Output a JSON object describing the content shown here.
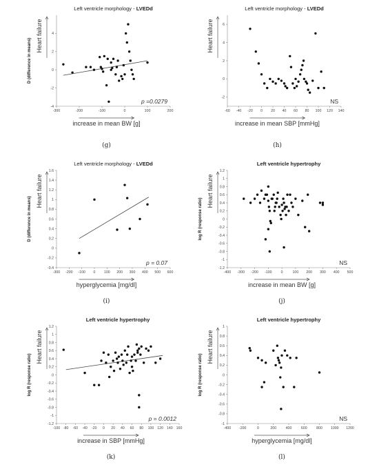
{
  "chart_data": [
    {
      "id": "g",
      "type": "scatter",
      "title_prefix": "Left ventricle morphology - ",
      "title_bold": "LVEDd",
      "ylabel": "D (difference in means)",
      "side_label": "Heart failure",
      "xlabel": "increase in mean BW [g]",
      "caption": "(g)",
      "stat": "p =0.0279",
      "xlim": [
        -300,
        200
      ],
      "ylim": [
        -4,
        6
      ],
      "xticks": [
        -300,
        -200,
        -100,
        0,
        100,
        200
      ],
      "yticks": [
        -4,
        -2,
        0,
        2,
        4
      ],
      "fit": [
        [
          -270,
          -0.6
        ],
        [
          100,
          1.0
        ]
      ],
      "points": [
        [
          -270,
          0.6
        ],
        [
          -230,
          -0.3
        ],
        [
          -170,
          0.3
        ],
        [
          -150,
          0.3
        ],
        [
          -135,
          0.0
        ],
        [
          -110,
          1.4
        ],
        [
          -105,
          0.3
        ],
        [
          -100,
          0.1
        ],
        [
          -95,
          -0.2
        ],
        [
          -90,
          1.5
        ],
        [
          -80,
          -1.7
        ],
        [
          -75,
          1.2
        ],
        [
          -70,
          -3.5
        ],
        [
          -60,
          0.0
        ],
        [
          -55,
          0.2
        ],
        [
          -50,
          1.2
        ],
        [
          -40,
          -0.5
        ],
        [
          -35,
          0.3
        ],
        [
          -30,
          1.0
        ],
        [
          -25,
          -1.2
        ],
        [
          -15,
          -0.7
        ],
        [
          -10,
          -1.0
        ],
        [
          -5,
          0.5
        ],
        [
          0,
          -0.5
        ],
        [
          5,
          4.0
        ],
        [
          10,
          3.0
        ],
        [
          15,
          5.0
        ],
        [
          20,
          2.0
        ],
        [
          25,
          1.0
        ],
        [
          30,
          0.0
        ],
        [
          35,
          -0.5
        ],
        [
          40,
          -1.0
        ],
        [
          -60,
          0.8
        ],
        [
          100,
          0.8
        ]
      ]
    },
    {
      "id": "h",
      "type": "scatter",
      "title_prefix": "Left ventricle morphology - ",
      "title_bold": "LVEDd",
      "ylabel": "",
      "side_label": "Heart failure",
      "xlabel": "increase in mean SBP [mmHg]",
      "caption": "(h)",
      "stat": "NS",
      "xlim": [
        -60,
        140
      ],
      "ylim": [
        -3,
        7
      ],
      "xticks": [
        -60,
        -40,
        -20,
        0,
        20,
        40,
        60,
        80,
        100,
        120,
        140
      ],
      "yticks": [
        -2,
        0,
        2,
        4,
        6
      ],
      "fit": null,
      "points": [
        [
          -20,
          5.5
        ],
        [
          -10,
          3.0
        ],
        [
          -5,
          1.7
        ],
        [
          0,
          0.5
        ],
        [
          5,
          -0.5
        ],
        [
          10,
          -1.0
        ],
        [
          15,
          0.0
        ],
        [
          20,
          -0.3
        ],
        [
          25,
          -0.5
        ],
        [
          30,
          0.0
        ],
        [
          35,
          -0.2
        ],
        [
          40,
          -0.5
        ],
        [
          42,
          -0.8
        ],
        [
          45,
          -1.0
        ],
        [
          50,
          2.5
        ],
        [
          52,
          1.3
        ],
        [
          55,
          -0.5
        ],
        [
          58,
          -1.0
        ],
        [
          60,
          0.0
        ],
        [
          62,
          -0.8
        ],
        [
          65,
          -0.3
        ],
        [
          68,
          0.5
        ],
        [
          70,
          1.0
        ],
        [
          72,
          1.5
        ],
        [
          74,
          2.0
        ],
        [
          75,
          0.0
        ],
        [
          78,
          -0.3
        ],
        [
          80,
          -0.5
        ],
        [
          82,
          -1.2
        ],
        [
          85,
          -1.5
        ],
        [
          90,
          -0.2
        ],
        [
          95,
          5.0
        ],
        [
          100,
          -1.0
        ],
        [
          105,
          0.8
        ],
        [
          110,
          -1.0
        ]
      ]
    },
    {
      "id": "i",
      "type": "scatter",
      "title_prefix": "Left ventricle morphology - ",
      "title_bold": "LVEDd",
      "ylabel": "D (difference in means)",
      "side_label": "Heart failure",
      "xlabel": "hyperglycemia [mg/dl]",
      "caption": "(i)",
      "stat": "p = 0.07",
      "xlim": [
        -300,
        600
      ],
      "ylim": [
        -0.4,
        1.6
      ],
      "xticks": [
        -300,
        -200,
        -100,
        0,
        100,
        200,
        300,
        400,
        500,
        600
      ],
      "yticks": [
        -0.4,
        -0.2,
        0,
        0.2,
        0.4,
        0.6,
        0.8,
        1.0,
        1.2,
        1.4,
        1.6
      ],
      "fit": [
        [
          -120,
          0.2
        ],
        [
          430,
          1.05
        ]
      ],
      "points": [
        [
          -120,
          -0.1
        ],
        [
          0,
          1.0
        ],
        [
          180,
          0.38
        ],
        [
          240,
          1.3
        ],
        [
          260,
          1.03
        ],
        [
          280,
          0.4
        ],
        [
          360,
          0.6
        ],
        [
          420,
          0.9
        ]
      ]
    },
    {
      "id": "j",
      "type": "scatter",
      "title_prefix": "",
      "title_bold": "Left ventricle hypertrophy",
      "ylabel": "log R (response ratio)",
      "side_label": "Heart failure",
      "xlabel": "increase in mean BW [g]",
      "caption": "(j)",
      "stat": "NS",
      "xlim": [
        -400,
        500
      ],
      "ylim": [
        -1.2,
        1.2
      ],
      "xticks": [
        -400,
        -300,
        -200,
        -100,
        0,
        100,
        200,
        300,
        400,
        500
      ],
      "yticks": [
        -1.2,
        -1.0,
        -0.8,
        -0.6,
        -0.4,
        -0.2,
        0,
        0.2,
        0.4,
        0.6,
        0.8,
        1.0,
        1.2
      ],
      "fit": null,
      "points": [
        [
          -280,
          0.5
        ],
        [
          -230,
          0.4
        ],
        [
          -200,
          0.5
        ],
        [
          -180,
          0.6
        ],
        [
          -160,
          0.4
        ],
        [
          -150,
          0.7
        ],
        [
          -130,
          0.5
        ],
        [
          -120,
          0.6
        ],
        [
          -110,
          0.6
        ],
        [
          -100,
          0.8
        ],
        [
          -100,
          0.45
        ],
        [
          -95,
          0.3
        ],
        [
          -90,
          0.2
        ],
        [
          -85,
          -0.05
        ],
        [
          -80,
          -0.1
        ],
        [
          -75,
          0.5
        ],
        [
          -70,
          0.5
        ],
        [
          -60,
          0.6
        ],
        [
          -55,
          0.2
        ],
        [
          -50,
          0.3
        ],
        [
          -45,
          0.4
        ],
        [
          -40,
          0.4
        ],
        [
          -35,
          0.5
        ],
        [
          -30,
          0.65
        ],
        [
          -20,
          0.3
        ],
        [
          -10,
          0.1
        ],
        [
          -5,
          0.0
        ],
        [
          0,
          0.35
        ],
        [
          5,
          0.2
        ],
        [
          10,
          0.5
        ],
        [
          15,
          0.4
        ],
        [
          20,
          0.25
        ],
        [
          25,
          0.3
        ],
        [
          30,
          0.1
        ],
        [
          35,
          0.3
        ],
        [
          40,
          0.6
        ],
        [
          50,
          0.2
        ],
        [
          60,
          0.6
        ],
        [
          70,
          0.4
        ],
        [
          80,
          0.3
        ],
        [
          100,
          0.5
        ],
        [
          120,
          0.1
        ],
        [
          150,
          0.45
        ],
        [
          170,
          -0.2
        ],
        [
          190,
          0.6
        ],
        [
          200,
          -0.3
        ],
        [
          280,
          0.4
        ],
        [
          300,
          0.4
        ],
        [
          300,
          0.35
        ],
        [
          -120,
          -0.5
        ],
        [
          -100,
          -0.25
        ],
        [
          -90,
          -0.8
        ],
        [
          15,
          -0.7
        ]
      ]
    },
    {
      "id": "k",
      "type": "scatter",
      "title_prefix": "",
      "title_bold": "Left ventricle hypertrophy",
      "ylabel": "log R (response ratio)",
      "side_label": "Heart failure",
      "xlabel": "increase in SBP [mmHg]",
      "caption": "(k)",
      "stat": "p = 0.0012",
      "xlim": [
        -100,
        160
      ],
      "ylim": [
        -1.2,
        1.2
      ],
      "xticks": [
        -100,
        -80,
        -60,
        -40,
        -20,
        0,
        20,
        40,
        60,
        80,
        100,
        120,
        140,
        160
      ],
      "yticks": [
        -1.2,
        -1.0,
        -0.8,
        -0.6,
        -0.4,
        -0.2,
        0,
        0.2,
        0.4,
        0.6,
        0.8,
        1.0,
        1.2
      ],
      "fit": [
        [
          -80,
          0.13
        ],
        [
          125,
          0.48
        ]
      ],
      "points": [
        [
          -85,
          0.62
        ],
        [
          -40,
          0.05
        ],
        [
          -20,
          -0.25
        ],
        [
          -10,
          -0.25
        ],
        [
          -5,
          0.35
        ],
        [
          0,
          0.55
        ],
        [
          5,
          0.3
        ],
        [
          10,
          0.5
        ],
        [
          12,
          -0.05
        ],
        [
          15,
          0.2
        ],
        [
          20,
          0.35
        ],
        [
          22,
          0.1
        ],
        [
          25,
          0.55
        ],
        [
          28,
          0.4
        ],
        [
          30,
          0.3
        ],
        [
          32,
          0.45
        ],
        [
          35,
          0.15
        ],
        [
          38,
          0.5
        ],
        [
          40,
          0.35
        ],
        [
          42,
          0.25
        ],
        [
          45,
          0.6
        ],
        [
          48,
          0.3
        ],
        [
          50,
          0.5
        ],
        [
          52,
          0.7
        ],
        [
          55,
          0.05
        ],
        [
          58,
          0.35
        ],
        [
          60,
          0.45
        ],
        [
          62,
          0.1
        ],
        [
          65,
          0.5
        ],
        [
          68,
          0.35
        ],
        [
          70,
          0.75
        ],
        [
          72,
          0.6
        ],
        [
          75,
          0.65
        ],
        [
          78,
          0.5
        ],
        [
          80,
          0.7
        ],
        [
          85,
          0.3
        ],
        [
          90,
          0.65
        ],
        [
          95,
          0.6
        ],
        [
          100,
          0.7
        ],
        [
          110,
          0.3
        ],
        [
          120,
          0.4
        ],
        [
          75,
          -0.5
        ],
        [
          75,
          -0.8
        ],
        [
          72,
          0.55
        ],
        [
          60,
          0.2
        ]
      ]
    },
    {
      "id": "l",
      "type": "scatter",
      "title_prefix": "",
      "title_bold": "Left ventricle hypertrophy",
      "ylabel": "log R (response ratio)",
      "side_label": "Heart failure",
      "xlabel": "hyperglycemia [mg/dl]",
      "caption": "(l)",
      "stat": "NS",
      "xlim": [
        -400,
        1200
      ],
      "ylim": [
        -1.0,
        1.0
      ],
      "xticks": [
        -400,
        -200,
        0,
        200,
        400,
        600,
        800,
        1000,
        1200
      ],
      "yticks": [
        -1.0,
        -0.8,
        -0.6,
        -0.4,
        -0.2,
        0,
        0.2,
        0.4,
        0.6,
        0.8,
        1.0
      ],
      "fit": null,
      "points": [
        [
          -110,
          0.55
        ],
        [
          -100,
          0.5
        ],
        [
          0,
          0.35
        ],
        [
          50,
          0.3
        ],
        [
          80,
          -0.15
        ],
        [
          100,
          0.25
        ],
        [
          200,
          0.5
        ],
        [
          230,
          0.2
        ],
        [
          250,
          0.6
        ],
        [
          260,
          0.35
        ],
        [
          270,
          0.3
        ],
        [
          280,
          0.25
        ],
        [
          290,
          -0.05
        ],
        [
          300,
          0.15
        ],
        [
          310,
          0.4
        ],
        [
          330,
          -0.25
        ],
        [
          350,
          0.5
        ],
        [
          380,
          0.4
        ],
        [
          420,
          0.35
        ],
        [
          470,
          -0.25
        ],
        [
          500,
          0.35
        ],
        [
          800,
          0.05
        ],
        [
          300,
          -0.7
        ],
        [
          50,
          -0.25
        ]
      ]
    }
  ]
}
